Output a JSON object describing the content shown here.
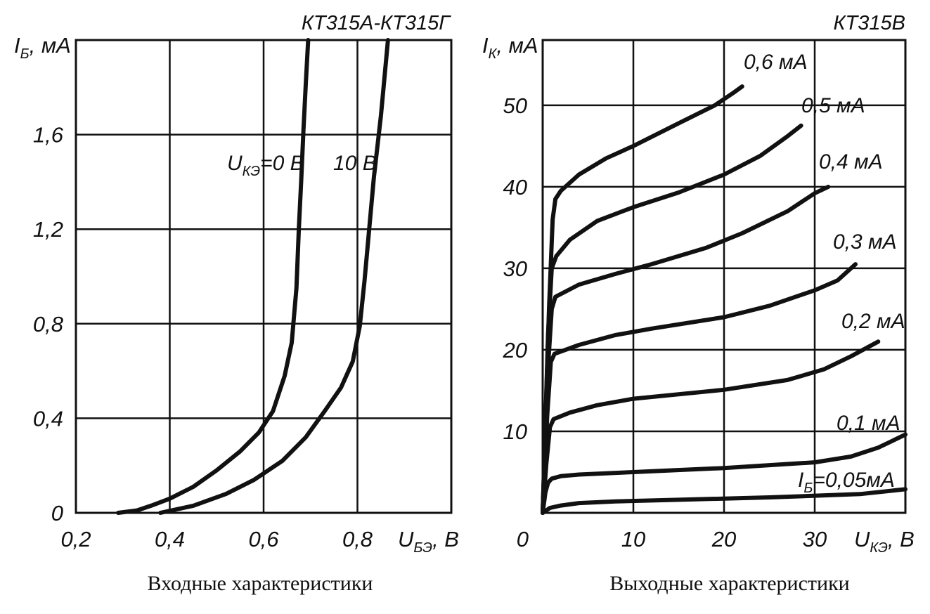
{
  "chart_data": [
    {
      "type": "line",
      "title": "КТ315А-КТ315Г",
      "caption": "Входные характеристики",
      "xlabel": {
        "main": "U",
        "sub": "БЭ",
        "unit": ", В"
      },
      "ylabel": {
        "main": "I",
        "sub": "Б",
        "unit": ", мА"
      },
      "xlim": [
        0.2,
        1.0
      ],
      "ylim": [
        0,
        2.0
      ],
      "xticks": [
        0.2,
        0.4,
        0.6,
        0.8
      ],
      "xtick_labels": [
        "0,2",
        "0,4",
        "0,6",
        "0,8"
      ],
      "yticks": [
        0,
        0.4,
        0.8,
        1.2,
        1.6
      ],
      "ytick_labels": [
        "0",
        "0,4",
        "0,8",
        "1,2",
        "1,6"
      ],
      "grid": true,
      "series": [
        {
          "name": "U_КЭ=0 В",
          "label": {
            "main": "U",
            "sub": "КЭ",
            "rest": "=0 В"
          },
          "x": [
            0.29,
            0.33,
            0.36,
            0.4,
            0.45,
            0.5,
            0.55,
            0.59,
            0.62,
            0.645,
            0.66,
            0.67,
            0.675,
            0.68,
            0.685,
            0.69,
            0.695
          ],
          "y": [
            0.0,
            0.01,
            0.03,
            0.06,
            0.11,
            0.18,
            0.26,
            0.34,
            0.43,
            0.58,
            0.72,
            0.95,
            1.2,
            1.4,
            1.62,
            1.82,
            2.0
          ]
        },
        {
          "name": "10 В",
          "label": {
            "main": "10 В",
            "sub": "",
            "rest": ""
          },
          "x": [
            0.38,
            0.45,
            0.52,
            0.58,
            0.64,
            0.69,
            0.73,
            0.765,
            0.79,
            0.805,
            0.815,
            0.825,
            0.835,
            0.85,
            0.865
          ],
          "y": [
            0.0,
            0.03,
            0.08,
            0.14,
            0.22,
            0.32,
            0.43,
            0.53,
            0.64,
            0.79,
            0.98,
            1.2,
            1.42,
            1.68,
            2.0
          ]
        }
      ]
    },
    {
      "type": "line",
      "title": "КТ315В",
      "caption": "Выходные характеристики",
      "xlabel": {
        "main": "U",
        "sub": "КЭ",
        "unit": ", В"
      },
      "ylabel": {
        "main": "I",
        "sub": "К",
        "unit": ", мА"
      },
      "xlim": [
        0,
        40
      ],
      "ylim": [
        0,
        58
      ],
      "xticks": [
        0,
        10,
        20,
        30
      ],
      "xtick_labels": [
        "0",
        "10",
        "20",
        "30"
      ],
      "yticks": [
        10,
        20,
        30,
        40,
        50
      ],
      "ytick_labels": [
        "10",
        "20",
        "30",
        "40",
        "50"
      ],
      "grid": true,
      "series": [
        {
          "name": "I_Б=0,05мА",
          "label": {
            "main": "I",
            "sub": "Б",
            "rest": "=0,05мА"
          },
          "x": [
            0.0,
            0.4,
            0.8,
            2,
            4,
            8,
            15,
            25,
            35,
            40
          ],
          "y": [
            0.0,
            0.3,
            0.6,
            0.9,
            1.2,
            1.4,
            1.6,
            1.9,
            2.3,
            2.9
          ]
        },
        {
          "name": "0,1 мА",
          "label": {
            "main": "0,1 мА",
            "sub": "",
            "rest": ""
          },
          "x": [
            0.0,
            0.3,
            0.6,
            1.0,
            2,
            4,
            10,
            20,
            30,
            34,
            37,
            40
          ],
          "y": [
            0.0,
            2.5,
            3.7,
            4.2,
            4.5,
            4.7,
            5.0,
            5.5,
            6.2,
            6.9,
            8.0,
            9.6
          ]
        },
        {
          "name": "0,2 мА",
          "label": {
            "main": "0,2 мА",
            "sub": "",
            "rest": ""
          },
          "x": [
            0.0,
            0.4,
            0.8,
            1.2,
            3,
            6,
            10,
            20,
            27,
            31,
            34,
            37
          ],
          "y": [
            0.0,
            6.0,
            10.5,
            11.5,
            12.3,
            13.2,
            14.0,
            15.1,
            16.3,
            17.6,
            19.2,
            21.0
          ]
        },
        {
          "name": "0,3 мА",
          "label": {
            "main": "0,3 мА",
            "sub": "",
            "rest": ""
          },
          "x": [
            0.0,
            0.5,
            0.9,
            1.3,
            4,
            8,
            12,
            20,
            25,
            30,
            32.5,
            34.5
          ],
          "y": [
            0.0,
            12.0,
            18.5,
            19.5,
            20.6,
            21.8,
            22.6,
            24.0,
            25.4,
            27.3,
            28.5,
            30.5
          ]
        },
        {
          "name": "0,4 мА",
          "label": {
            "main": "0,4 мА",
            "sub": "",
            "rest": ""
          },
          "x": [
            0.0,
            0.6,
            1.0,
            1.4,
            4,
            8,
            12,
            18,
            22,
            27,
            30,
            31.5
          ],
          "y": [
            0.0,
            18.0,
            25.0,
            26.5,
            28.0,
            29.3,
            30.5,
            32.5,
            34.3,
            37.0,
            39.2,
            40.0
          ]
        },
        {
          "name": "0,5 мА",
          "label": {
            "main": "0,5 мА",
            "sub": "",
            "rest": ""
          },
          "x": [
            0.0,
            0.6,
            1.0,
            1.5,
            3,
            6,
            10,
            15,
            20,
            24,
            27,
            28.5
          ],
          "y": [
            0.0,
            22.0,
            30.0,
            31.5,
            33.5,
            35.8,
            37.5,
            39.3,
            41.5,
            43.8,
            46.2,
            47.5
          ]
        },
        {
          "name": "0,6 мА",
          "label": {
            "main": "0,6 мА",
            "sub": "",
            "rest": ""
          },
          "x": [
            0.0,
            0.7,
            1.1,
            1.4,
            2,
            4,
            7,
            10,
            15,
            19,
            21,
            22
          ],
          "y": [
            0.0,
            25.0,
            36.0,
            38.5,
            39.5,
            41.5,
            43.5,
            45.0,
            47.8,
            50.0,
            51.5,
            52.3
          ]
        }
      ]
    }
  ]
}
